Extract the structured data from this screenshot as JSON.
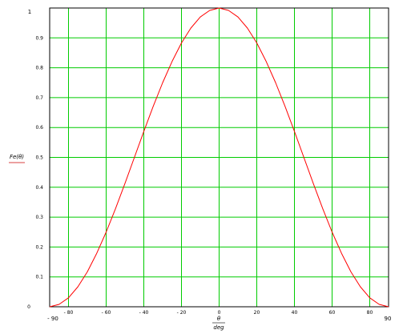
{
  "chart_data": {
    "type": "line",
    "ylabel": "Fe(θ)",
    "xlabel_numerator": "θ",
    "xlabel_denominator": "deg",
    "xlim": [
      -90,
      90
    ],
    "ylim": [
      0,
      1
    ],
    "grid": true,
    "x_ticks": [
      -80,
      -60,
      -40,
      -20,
      0,
      20,
      40,
      60,
      80
    ],
    "x_tick_labels": [
      "- 80",
      "- 60",
      "- 40",
      "- 20",
      "0",
      "20",
      "40",
      "60",
      "80"
    ],
    "x_end_labels": [
      "- 90",
      "90"
    ],
    "y_ticks": [
      0,
      0.1,
      0.2,
      0.3,
      0.4,
      0.5,
      0.6,
      0.7,
      0.8,
      0.9,
      1
    ],
    "y_tick_labels": [
      "0",
      "0.1",
      "0.2",
      "0.3",
      "0.4",
      "0.5",
      "0.6",
      "0.7",
      "0.8",
      "0.9",
      "1"
    ],
    "y_top_label": "1",
    "colors": {
      "series": "#ff0000",
      "grid": "#00cc00",
      "axis": "#000000"
    },
    "series": [
      {
        "x": [
          -90,
          -85,
          -80,
          -75,
          -70,
          -65,
          -60,
          -55,
          -50,
          -45,
          -40,
          -35,
          -30,
          -25,
          -20,
          -15,
          -10,
          -5,
          0,
          5,
          10,
          15,
          20,
          25,
          30,
          35,
          40,
          45,
          50,
          55,
          60,
          65,
          70,
          75,
          80,
          85,
          90
        ],
        "y": [
          0,
          0.008,
          0.03,
          0.067,
          0.117,
          0.179,
          0.25,
          0.329,
          0.413,
          0.5,
          0.587,
          0.671,
          0.75,
          0.821,
          0.883,
          0.933,
          0.97,
          0.992,
          1,
          0.992,
          0.97,
          0.933,
          0.883,
          0.821,
          0.75,
          0.671,
          0.587,
          0.5,
          0.413,
          0.329,
          0.25,
          0.179,
          0.117,
          0.067,
          0.03,
          0.008,
          0
        ]
      }
    ]
  }
}
